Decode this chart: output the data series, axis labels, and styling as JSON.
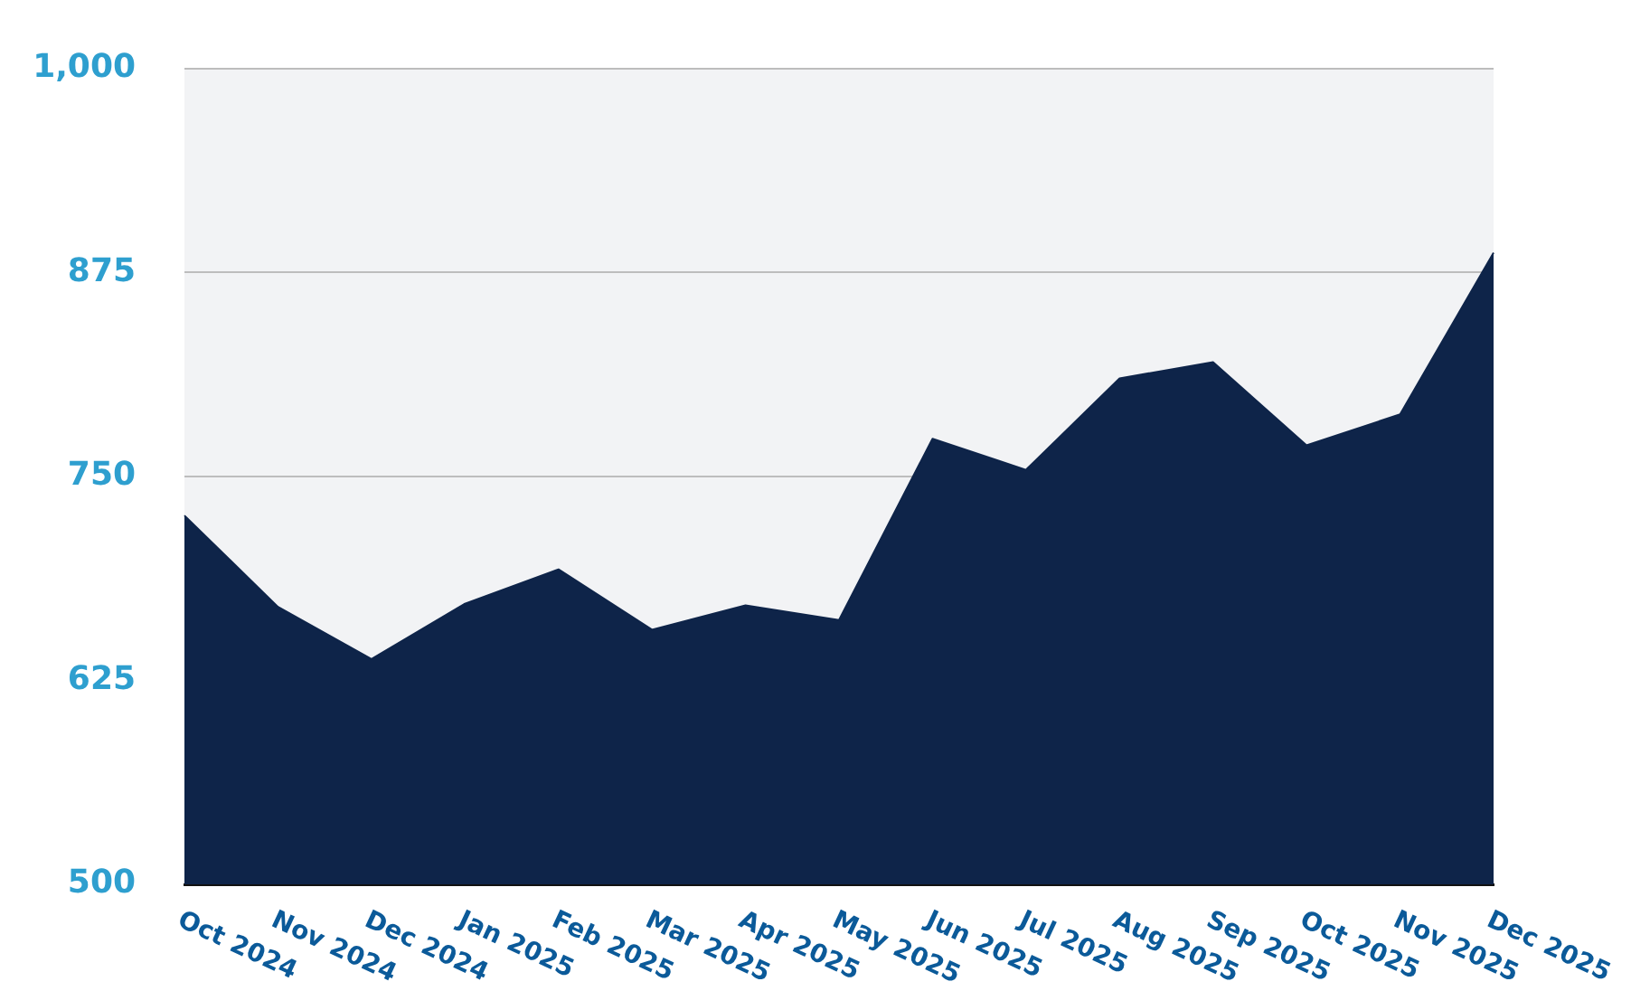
{
  "chart_data": {
    "type": "area",
    "categories": [
      "Oct 2024",
      "Nov 2024",
      "Dec 2024",
      "Jan 2025",
      "Feb 2025",
      "Mar 2025",
      "Apr 2025",
      "May 2025",
      "Jun 2025",
      "Jul 2025",
      "Aug 2025",
      "Sep 2025",
      "Oct 2025",
      "Nov 2025",
      "Dec 2025"
    ],
    "values": [
      726,
      670,
      638,
      672,
      693,
      656,
      671,
      662,
      773,
      754,
      810,
      820,
      769,
      788,
      887
    ],
    "color": "#0e2449",
    "ylim": [
      500,
      1000
    ],
    "yticks": [
      500,
      625,
      750,
      875,
      {
        "value": 1000,
        "label": "1,000"
      }
    ],
    "grid": "y",
    "legend": false
  }
}
